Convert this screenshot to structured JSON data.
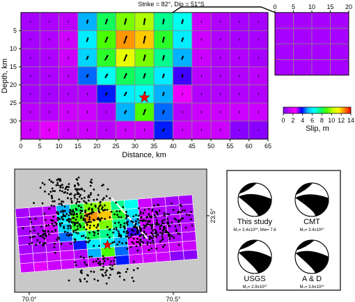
{
  "slip_map": {
    "title": "Strike = 82°, Dip = 51°S",
    "xlabel": "Distance, km",
    "ylabel": "Depth, km",
    "x_ticks": [
      "0",
      "5",
      "10",
      "15",
      "20",
      "25",
      "30",
      "35",
      "40",
      "45",
      "50",
      "55",
      "60",
      "65"
    ],
    "y_ticks": [
      "5",
      "10",
      "15",
      "20",
      "25",
      "30"
    ],
    "hypocenter": {
      "distance_km": 32.5,
      "depth_km": 23.5
    },
    "rake_scale_max_slip_m": 14,
    "columns": 13,
    "rows": 7,
    "slip_m": [
      [
        0.8,
        0.9,
        1.2,
        5.0,
        8.0,
        9.5,
        10.0,
        7.5,
        6.5,
        1.5,
        1.0,
        0.8,
        0.8
      ],
      [
        0.8,
        1.0,
        1.5,
        6.0,
        9.0,
        12.5,
        12.0,
        8.5,
        6.0,
        1.5,
        1.0,
        0.8,
        0.8
      ],
      [
        0.8,
        0.9,
        1.5,
        5.5,
        8.5,
        11.0,
        9.5,
        7.5,
        5.0,
        1.5,
        1.0,
        1.0,
        0.8
      ],
      [
        0.8,
        0.9,
        1.2,
        4.5,
        6.5,
        8.0,
        7.5,
        6.0,
        3.5,
        1.2,
        1.0,
        1.0,
        1.2
      ],
      [
        0.8,
        0.8,
        1.0,
        1.0,
        4.0,
        6.0,
        6.5,
        5.0,
        2.2,
        1.0,
        1.0,
        1.0,
        1.0
      ],
      [
        1.2,
        1.1,
        1.5,
        1.5,
        1.0,
        5.0,
        9.0,
        4.5,
        1.2,
        1.5,
        1.5,
        1.5,
        1.5
      ],
      [
        1.5,
        2.0,
        1.5,
        1.5,
        1.2,
        1.5,
        1.5,
        4.0,
        1.5,
        1.5,
        1.5,
        0.2,
        0.2
      ]
    ],
    "rake_deg": [
      [
        90,
        90,
        90,
        75,
        70,
        75,
        80,
        80,
        75,
        90,
        90,
        90,
        90
      ],
      [
        90,
        90,
        90,
        70,
        65,
        70,
        78,
        78,
        72,
        90,
        90,
        90,
        90
      ],
      [
        90,
        90,
        90,
        65,
        60,
        68,
        75,
        75,
        70,
        90,
        90,
        90,
        90
      ],
      [
        90,
        90,
        90,
        60,
        58,
        65,
        72,
        72,
        70,
        90,
        90,
        90,
        90
      ],
      [
        90,
        90,
        90,
        90,
        55,
        60,
        70,
        72,
        70,
        90,
        90,
        90,
        90
      ],
      [
        90,
        90,
        90,
        90,
        90,
        60,
        70,
        72,
        90,
        90,
        90,
        90,
        90
      ],
      [
        90,
        90,
        90,
        90,
        90,
        90,
        90,
        60,
        90,
        90,
        90,
        55,
        55
      ]
    ]
  },
  "inset_grid": {
    "x_ticks": [
      "0",
      "5",
      "10",
      "15",
      "20"
    ],
    "columns": 4,
    "rows": 4,
    "slip_m": [
      [
        0.8,
        0.8,
        0.8,
        0.8
      ],
      [
        0.8,
        0.8,
        0.8,
        0.8
      ],
      [
        0.8,
        0.8,
        0.8,
        0.8
      ],
      [
        0.8,
        0.8,
        0.8,
        0.8
      ]
    ]
  },
  "colorbar": {
    "label": "Slip, m",
    "ticks": [
      "0",
      "2",
      "4",
      "6",
      "8",
      "10",
      "12",
      "14"
    ],
    "min": 0,
    "max": 14,
    "stops": [
      "#8000ff",
      "#c000ff",
      "#ff00ff",
      "#0000ff",
      "#00c0ff",
      "#00ffff",
      "#00ff80",
      "#40ff00",
      "#c0ff00",
      "#ffff00",
      "#ff8000",
      "#ff0000"
    ]
  },
  "map": {
    "lon_labels": [
      "70.0°",
      "70.5°"
    ],
    "lat_label": "23.5°"
  },
  "mechanisms": [
    {
      "name": "This study",
      "moment": "M₀= 3.4x10²⁰, Mw= 7.6"
    },
    {
      "name": "CMT",
      "moment": "M₀= 3.4x10²⁰"
    },
    {
      "name": "USGS",
      "moment": "M₀= 2.9x10²⁰"
    },
    {
      "name": "A & D",
      "moment": "M₀= 3.6x10²⁰"
    }
  ],
  "colors": {
    "background_grey": "#c8c8c8",
    "hypocenter": "#ff0000",
    "beachball": "#000000"
  }
}
